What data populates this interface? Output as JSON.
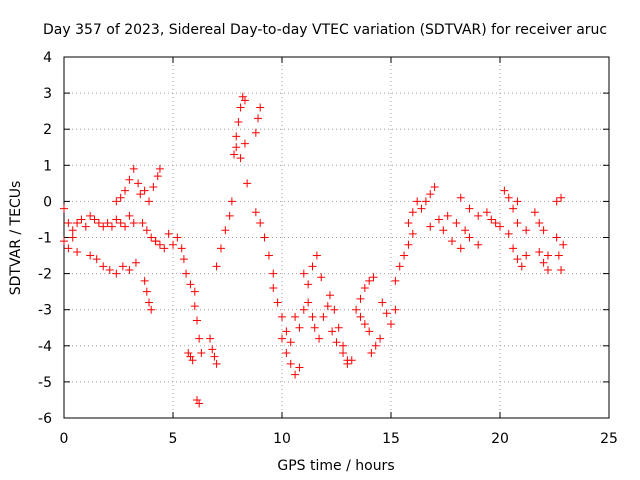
{
  "chart_data": {
    "type": "scatter",
    "title": "Day 357 of 2023, Sidereal Day-to-day VTEC variation (SDTVAR) for receiver aruc",
    "xlabel": "GPS time / hours",
    "ylabel": "SDTVAR / TECUs",
    "xlim": [
      0,
      25
    ],
    "ylim": [
      -6,
      4
    ],
    "xticks": [
      "0",
      "5",
      "10",
      "15",
      "20",
      "25"
    ],
    "yticks": [
      "-6",
      "-5",
      "-4",
      "-3",
      "-2",
      "-1",
      "0",
      "1",
      "2",
      "3",
      "4"
    ],
    "grid": true,
    "marker": "+",
    "color": "#ff0000",
    "segments": [
      {
        "x": [
          0.0,
          0.2,
          0.4,
          0.6,
          0.8,
          1.0,
          1.2,
          1.4,
          1.6,
          1.8,
          2.0
        ],
        "y": [
          -0.2,
          -0.6,
          -0.8,
          -0.6,
          -0.5,
          -0.7,
          -0.4,
          -0.5,
          -0.6,
          -0.7,
          -0.6
        ]
      },
      {
        "x": [
          0.0,
          0.2,
          0.4,
          0.6
        ],
        "y": [
          -1.1,
          -1.3,
          -1.0,
          -1.4
        ]
      },
      {
        "x": [
          1.2,
          1.5,
          1.8,
          2.1,
          2.4,
          2.7,
          3.0,
          3.3
        ],
        "y": [
          -1.5,
          -1.6,
          -1.8,
          -1.9,
          -2.0,
          -1.8,
          -1.9,
          -1.7
        ]
      },
      {
        "x": [
          2.2,
          2.4,
          2.6,
          2.8,
          3.0,
          3.2
        ],
        "y": [
          -0.7,
          -0.5,
          -0.6,
          -0.7,
          -0.4,
          -0.6
        ]
      },
      {
        "x": [
          2.4,
          2.6,
          2.8,
          3.0,
          3.2,
          3.4
        ],
        "y": [
          0.0,
          0.1,
          0.3,
          0.6,
          0.9,
          0.5
        ]
      },
      {
        "x": [
          3.5,
          3.7,
          3.9,
          4.1,
          4.3,
          4.4
        ],
        "y": [
          0.2,
          0.3,
          0.0,
          0.4,
          0.7,
          0.9
        ]
      },
      {
        "x": [
          3.6,
          3.8,
          4.0,
          4.2
        ],
        "y": [
          -0.6,
          -0.8,
          -1.0,
          -1.1
        ]
      },
      {
        "x": [
          3.7,
          3.8,
          3.9,
          4.0
        ],
        "y": [
          -2.2,
          -2.5,
          -2.8,
          -3.0
        ]
      },
      {
        "x": [
          4.2,
          4.4,
          4.6
        ],
        "y": [
          -1.1,
          -1.2,
          -1.3
        ]
      },
      {
        "x": [
          4.8,
          5.0,
          5.2,
          5.4
        ],
        "y": [
          -0.9,
          -1.2,
          -1.0,
          -1.3
        ]
      },
      {
        "x": [
          5.5,
          5.6,
          5.8,
          6.0
        ],
        "y": [
          -1.6,
          -2.0,
          -2.3,
          -2.5
        ]
      },
      {
        "x": [
          5.7,
          5.8,
          5.9
        ],
        "y": [
          -4.2,
          -4.3,
          -4.4
        ]
      },
      {
        "x": [
          6.0,
          6.1,
          6.2,
          6.3
        ],
        "y": [
          -2.9,
          -3.3,
          -3.8,
          -4.2
        ]
      },
      {
        "x": [
          6.1,
          6.2
        ],
        "y": [
          -5.5,
          -5.6
        ]
      },
      {
        "x": [
          6.7,
          6.8,
          6.9,
          7.0
        ],
        "y": [
          -3.8,
          -4.1,
          -4.3,
          -4.5
        ]
      },
      {
        "x": [
          7.0,
          7.2,
          7.4,
          7.6,
          7.7
        ],
        "y": [
          -1.8,
          -1.3,
          -0.8,
          -0.4,
          0.0
        ]
      },
      {
        "x": [
          7.8,
          7.9,
          8.0,
          8.1,
          8.2,
          8.3
        ],
        "y": [
          1.3,
          1.8,
          2.2,
          2.6,
          2.9,
          2.8
        ]
      },
      {
        "x": [
          7.9,
          8.1,
          8.3
        ],
        "y": [
          1.5,
          1.2,
          1.6
        ]
      },
      {
        "x": [
          8.8,
          8.9,
          9.0
        ],
        "y": [
          1.9,
          2.3,
          2.6
        ]
      },
      {
        "x": [
          8.4
        ],
        "y": [
          0.5
        ]
      },
      {
        "x": [
          8.8,
          9.0,
          9.2,
          9.4,
          9.6
        ],
        "y": [
          -0.3,
          -0.6,
          -1.0,
          -1.5,
          -2.0
        ]
      },
      {
        "x": [
          9.6,
          9.8,
          10.0,
          10.2,
          10.4
        ],
        "y": [
          -2.4,
          -2.8,
          -3.2,
          -3.6,
          -3.9
        ]
      },
      {
        "x": [
          10.0,
          10.2,
          10.4,
          10.6,
          10.8
        ],
        "y": [
          -3.8,
          -4.2,
          -4.5,
          -4.8,
          -4.6
        ]
      },
      {
        "x": [
          10.6,
          10.8,
          11.0,
          11.2,
          11.4
        ],
        "y": [
          -3.2,
          -3.5,
          -3.0,
          -2.8,
          -3.2
        ]
      },
      {
        "x": [
          11.0,
          11.2,
          11.4,
          11.6,
          11.8
        ],
        "y": [
          -2.0,
          -2.3,
          -1.8,
          -1.5,
          -2.1
        ]
      },
      {
        "x": [
          11.5,
          11.7,
          11.9,
          12.1,
          12.3,
          12.5
        ],
        "y": [
          -3.5,
          -3.8,
          -3.2,
          -2.9,
          -3.6,
          -3.9
        ]
      },
      {
        "x": [
          12.2,
          12.4,
          12.6,
          12.8,
          13.0
        ],
        "y": [
          -2.6,
          -3.0,
          -3.5,
          -4.0,
          -4.4
        ]
      },
      {
        "x": [
          12.8,
          13.0,
          13.2
        ],
        "y": [
          -4.2,
          -4.5,
          -4.4
        ]
      },
      {
        "x": [
          13.4,
          13.6,
          13.8,
          14.0,
          14.2
        ],
        "y": [
          -3.0,
          -2.7,
          -2.4,
          -2.2,
          -2.1
        ]
      },
      {
        "x": [
          13.6,
          13.8,
          14.0
        ],
        "y": [
          -3.2,
          -3.4,
          -3.6
        ]
      },
      {
        "x": [
          14.1,
          14.3,
          14.5
        ],
        "y": [
          -4.2,
          -4.0,
          -3.8
        ]
      },
      {
        "x": [
          14.6,
          14.8,
          15.0,
          15.2
        ],
        "y": [
          -2.8,
          -3.1,
          -3.4,
          -3.0
        ]
      },
      {
        "x": [
          15.2,
          15.4,
          15.6,
          15.8,
          16.0
        ],
        "y": [
          -2.2,
          -1.8,
          -1.5,
          -1.2,
          -0.9
        ]
      },
      {
        "x": [
          15.8,
          16.0,
          16.2,
          16.4
        ],
        "y": [
          -0.6,
          -0.3,
          0.0,
          -0.2
        ]
      },
      {
        "x": [
          16.6,
          16.8,
          17.0
        ],
        "y": [
          0.0,
          0.2,
          0.4
        ]
      },
      {
        "x": [
          16.8,
          17.2,
          17.6,
          18.0,
          18.4
        ],
        "y": [
          -0.7,
          -0.5,
          -0.4,
          -0.6,
          -0.8
        ]
      },
      {
        "x": [
          17.4,
          17.8,
          18.2,
          18.6,
          19.0
        ],
        "y": [
          -0.8,
          -1.1,
          -1.3,
          -1.0,
          -1.2
        ]
      },
      {
        "x": [
          18.2,
          18.6,
          19.0,
          19.4,
          19.8
        ],
        "y": [
          0.1,
          -0.2,
          -0.4,
          -0.3,
          -0.6
        ]
      },
      {
        "x": [
          19.6,
          20.0,
          20.4,
          20.8,
          21.2
        ],
        "y": [
          -0.5,
          -0.7,
          -0.9,
          -0.6,
          -0.8
        ]
      },
      {
        "x": [
          20.2,
          20.4,
          20.6,
          20.8
        ],
        "y": [
          0.3,
          0.1,
          -0.2,
          0.0
        ]
      },
      {
        "x": [
          20.6,
          20.8,
          21.0,
          21.2
        ],
        "y": [
          -1.3,
          -1.6,
          -1.8,
          -1.5
        ]
      },
      {
        "x": [
          21.6,
          21.8,
          22.0,
          22.2
        ],
        "y": [
          -0.3,
          -0.6,
          -0.8,
          -1.5
        ]
      },
      {
        "x": [
          21.8,
          22.0,
          22.2
        ],
        "y": [
          -1.4,
          -1.7,
          -1.9
        ]
      },
      {
        "x": [
          22.6,
          22.8
        ],
        "y": [
          0.0,
          0.1
        ]
      },
      {
        "x": [
          22.6,
          22.7,
          22.8,
          22.9
        ],
        "y": [
          -1.0,
          -1.5,
          -1.9,
          -1.2
        ]
      }
    ]
  }
}
